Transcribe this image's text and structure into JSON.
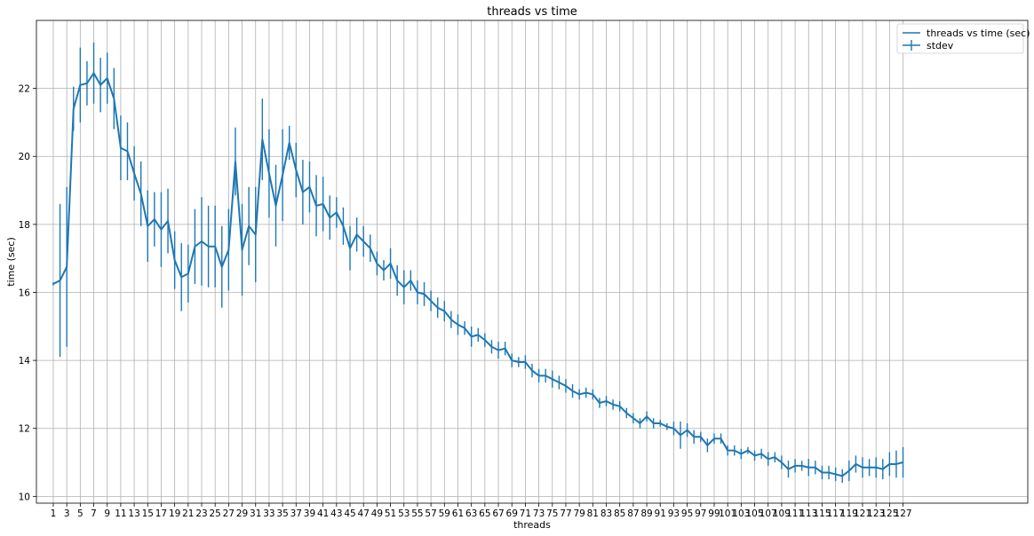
{
  "chart_data": {
    "type": "line",
    "title": "threads vs time",
    "xlabel": "threads",
    "ylabel": "time (sec)",
    "xlim": [
      -1.5,
      145.5
    ],
    "ylim": [
      9.8,
      24.0
    ],
    "grid": true,
    "legend_position": "upper right",
    "x_tick_labels": [
      "1",
      "3",
      "5",
      "7",
      "9",
      "11",
      "13",
      "15",
      "17",
      "19",
      "21",
      "23",
      "25",
      "27",
      "29",
      "31",
      "33",
      "35",
      "37",
      "39",
      "41",
      "43",
      "45",
      "47",
      "49",
      "51",
      "53",
      "55",
      "57",
      "59",
      "61",
      "63",
      "65",
      "67",
      "69",
      "71",
      "73",
      "75",
      "77",
      "79",
      "81",
      "83",
      "85",
      "87",
      "89",
      "91",
      "93",
      "95",
      "97",
      "99",
      "101",
      "103",
      "105",
      "107",
      "109",
      "111",
      "113",
      "115",
      "117",
      "119",
      "121",
      "123",
      "125",
      "127"
    ],
    "y_ticks": [
      10,
      12,
      14,
      16,
      18,
      20,
      22
    ],
    "x": [
      1,
      2,
      3,
      4,
      5,
      6,
      7,
      8,
      9,
      10,
      11,
      12,
      13,
      14,
      15,
      16,
      17,
      18,
      19,
      20,
      21,
      22,
      23,
      24,
      25,
      26,
      27,
      28,
      29,
      30,
      31,
      32,
      33,
      34,
      35,
      36,
      37,
      38,
      39,
      40,
      41,
      42,
      43,
      44,
      45,
      46,
      47,
      48,
      49,
      50,
      51,
      52,
      53,
      54,
      55,
      56,
      57,
      58,
      59,
      60,
      61,
      62,
      63,
      64,
      65,
      66,
      67,
      68,
      69,
      70,
      71,
      72,
      73,
      74,
      75,
      76,
      77,
      78,
      79,
      80,
      81,
      82,
      83,
      84,
      85,
      86,
      87,
      88,
      89,
      90,
      91,
      92,
      93,
      94,
      95,
      96,
      97,
      98,
      99,
      100,
      101,
      102,
      103,
      104,
      105,
      106,
      107,
      108,
      109,
      110,
      111,
      112,
      113,
      114,
      115,
      116,
      117,
      118,
      119,
      120,
      121,
      122,
      123,
      124,
      125,
      126,
      127
    ],
    "series": [
      {
        "name": "threads vs time (sec)",
        "color": "#1f77b4",
        "values": [
          16.25,
          16.35,
          16.75,
          21.4,
          22.1,
          22.15,
          22.45,
          22.1,
          22.3,
          21.7,
          20.25,
          20.15,
          19.5,
          18.9,
          17.95,
          18.15,
          17.85,
          18.1,
          16.95,
          16.45,
          16.55,
          17.35,
          17.5,
          17.35,
          17.35,
          16.75,
          17.25,
          19.85,
          17.25,
          17.95,
          17.7,
          20.5,
          19.5,
          18.55,
          19.45,
          20.4,
          19.6,
          18.95,
          19.1,
          18.55,
          18.6,
          18.2,
          18.35,
          17.95,
          17.3,
          17.7,
          17.5,
          17.3,
          16.85,
          16.65,
          16.85,
          16.35,
          16.15,
          16.35,
          16.0,
          15.95,
          15.75,
          15.55,
          15.45,
          15.2,
          15.05,
          14.95,
          14.7,
          14.75,
          14.6,
          14.4,
          14.3,
          14.35,
          14.0,
          13.95,
          13.95,
          13.7,
          13.55,
          13.55,
          13.45,
          13.35,
          13.25,
          13.1,
          13.0,
          13.05,
          13.0,
          12.75,
          12.8,
          12.7,
          12.65,
          12.45,
          12.3,
          12.15,
          12.35,
          12.15,
          12.15,
          12.05,
          12.0,
          11.8,
          11.95,
          11.75,
          11.75,
          11.5,
          11.7,
          11.7,
          11.35,
          11.35,
          11.25,
          11.35,
          11.2,
          11.25,
          11.1,
          11.15,
          11.0,
          10.8,
          10.9,
          10.9,
          10.85,
          10.85,
          10.7,
          10.7,
          10.65,
          10.6,
          10.75,
          10.95,
          10.85,
          10.85,
          10.85,
          10.8,
          10.95,
          10.95,
          11.0
        ]
      },
      {
        "name": "stdev",
        "color": "#1f77b4",
        "errors": [
          0.05,
          2.25,
          2.35,
          0.65,
          1.1,
          0.65,
          0.9,
          0.8,
          0.75,
          0.9,
          0.95,
          0.85,
          0.8,
          0.95,
          1.05,
          0.8,
          1.1,
          0.95,
          0.85,
          1.0,
          0.85,
          1.1,
          1.3,
          1.2,
          1.2,
          1.2,
          1.2,
          1.0,
          1.35,
          1.15,
          1.4,
          1.2,
          1.3,
          1.2,
          1.35,
          0.5,
          0.8,
          0.95,
          0.75,
          0.9,
          0.8,
          0.65,
          0.45,
          0.55,
          0.65,
          0.5,
          0.45,
          0.4,
          0.35,
          0.3,
          0.45,
          0.45,
          0.5,
          0.3,
          0.35,
          0.35,
          0.3,
          0.3,
          0.3,
          0.25,
          0.3,
          0.2,
          0.3,
          0.2,
          0.2,
          0.2,
          0.25,
          0.2,
          0.2,
          0.15,
          0.2,
          0.2,
          0.2,
          0.2,
          0.25,
          0.2,
          0.2,
          0.2,
          0.15,
          0.15,
          0.15,
          0.15,
          0.15,
          0.15,
          0.15,
          0.15,
          0.15,
          0.15,
          0.15,
          0.15,
          0.1,
          0.1,
          0.2,
          0.4,
          0.2,
          0.2,
          0.15,
          0.2,
          0.15,
          0.15,
          0.15,
          0.15,
          0.15,
          0.1,
          0.15,
          0.15,
          0.2,
          0.15,
          0.2,
          0.25,
          0.2,
          0.15,
          0.25,
          0.2,
          0.2,
          0.2,
          0.2,
          0.2,
          0.3,
          0.25,
          0.3,
          0.25,
          0.3,
          0.3,
          0.35,
          0.4,
          0.45
        ]
      }
    ]
  }
}
